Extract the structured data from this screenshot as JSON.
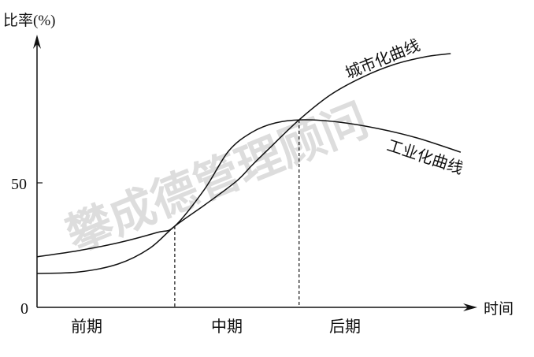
{
  "chart_data": {
    "type": "line",
    "ylabel": "比率(%)",
    "xlabel": "时间",
    "yticks": [
      0,
      50
    ],
    "ylim": [
      0,
      100
    ],
    "xlim": [
      0,
      100
    ],
    "grid": false,
    "phases": [
      "前期",
      "中期",
      "后期"
    ],
    "crossings": [
      {
        "x": 31.8,
        "y": 32.6
      },
      {
        "x": 60.5,
        "y": 75.3
      }
    ],
    "series": [
      {
        "name": "城市化曲线",
        "x": [
          0,
          9.6,
          18.7,
          26,
          31.8,
          38.7,
          46,
          49.6,
          53.3,
          60.5,
          67.8,
          75.1,
          82.4,
          89.6,
          95.5
        ],
        "y": [
          13.6,
          14.2,
          17.4,
          23.7,
          32.6,
          41.1,
          50.6,
          57,
          63.3,
          75.3,
          85.4,
          92.4,
          97.5,
          100.6,
          101.9
        ]
      },
      {
        "name": "工业化曲线",
        "x": [
          0,
          9.6,
          18.7,
          27.8,
          31.8,
          38.7,
          44.2,
          49.6,
          55.1,
          61.5,
          69.6,
          78.7,
          87.8,
          97.8
        ],
        "y": [
          20.3,
          22.8,
          25.9,
          30.1,
          32.6,
          47.5,
          62.7,
          70.3,
          74.1,
          75.3,
          74.4,
          71.8,
          68,
          62.3
        ]
      }
    ],
    "line_color": "#111111",
    "watermark": "攀成德管理顾问"
  }
}
